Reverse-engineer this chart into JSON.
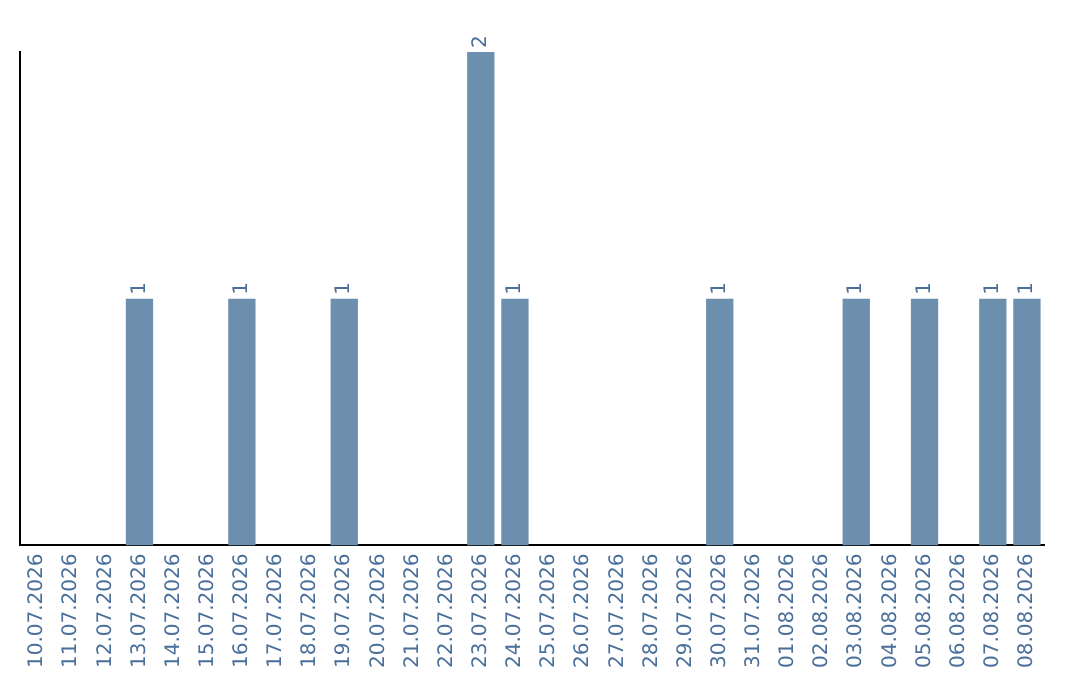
{
  "chart_data": {
    "type": "bar",
    "categories": [
      "10.07.2026",
      "11.07.2026",
      "12.07.2026",
      "13.07.2026",
      "14.07.2026",
      "15.07.2026",
      "16.07.2026",
      "17.07.2026",
      "18.07.2026",
      "19.07.2026",
      "20.07.2026",
      "21.07.2026",
      "22.07.2026",
      "23.07.2026",
      "24.07.2026",
      "25.07.2026",
      "26.07.2026",
      "27.07.2026",
      "28.07.2026",
      "29.07.2026",
      "30.07.2026",
      "31.07.2026",
      "01.08.2026",
      "02.08.2026",
      "03.08.2026",
      "04.08.2026",
      "05.08.2026",
      "06.08.2026",
      "07.08.2026",
      "08.08.2026"
    ],
    "values": [
      0,
      0,
      0,
      1,
      0,
      0,
      1,
      0,
      0,
      1,
      0,
      0,
      0,
      2,
      1,
      0,
      0,
      0,
      0,
      0,
      1,
      0,
      0,
      0,
      1,
      0,
      1,
      0,
      1,
      1
    ],
    "value_labels": [
      null,
      null,
      null,
      "1",
      null,
      null,
      "1",
      null,
      null,
      "1",
      null,
      null,
      null,
      "2",
      "1",
      null,
      null,
      null,
      null,
      null,
      "1",
      null,
      null,
      null,
      "1",
      null,
      "1",
      null,
      "1",
      "1"
    ],
    "color": "#6c8fad",
    "grid": false,
    "tick_labels": "x"
  }
}
